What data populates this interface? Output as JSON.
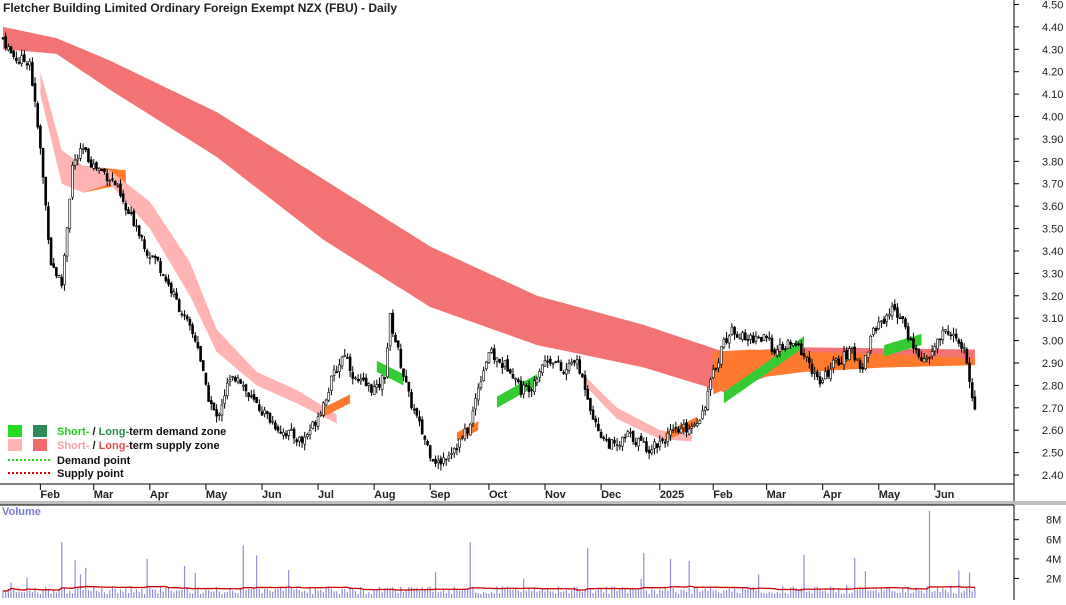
{
  "chart_data": {
    "type": "candlestick",
    "title": "Fletcher Building Limited Ordinary Foreign Exempt NZX (FBU) - Daily",
    "price_axis": {
      "ylim": [
        2.36,
        4.52
      ],
      "ticks": [
        "2.40",
        "2.50",
        "2.60",
        "2.70",
        "2.80",
        "2.90",
        "3.00",
        "3.10",
        "3.20",
        "3.30",
        "3.40",
        "3.50",
        "3.60",
        "3.70",
        "3.80",
        "3.90",
        "4.00",
        "4.10",
        "4.20",
        "4.30",
        "4.40",
        "4.50"
      ]
    },
    "x_axis": {
      "months": [
        "Feb",
        "Mar",
        "Apr",
        "May",
        "Jun",
        "Jul",
        "Aug",
        "Sep",
        "Oct",
        "Nov",
        "Dec",
        "2025",
        "Feb",
        "Mar",
        "Apr",
        "May",
        "Jun"
      ],
      "month_index": [
        14,
        34,
        55,
        76,
        97,
        118,
        139,
        160,
        182,
        203,
        224,
        246,
        266,
        286,
        307,
        328,
        349
      ]
    },
    "price_anchors": [
      [
        0,
        4.35
      ],
      [
        3,
        4.28
      ],
      [
        6,
        4.25
      ],
      [
        10,
        4.25
      ],
      [
        14,
        3.85
      ],
      [
        18,
        3.35
      ],
      [
        22,
        3.25
      ],
      [
        26,
        3.78
      ],
      [
        30,
        3.85
      ],
      [
        34,
        3.78
      ],
      [
        38,
        3.75
      ],
      [
        42,
        3.7
      ],
      [
        46,
        3.58
      ],
      [
        50,
        3.52
      ],
      [
        54,
        3.4
      ],
      [
        58,
        3.35
      ],
      [
        62,
        3.25
      ],
      [
        66,
        3.15
      ],
      [
        70,
        3.05
      ],
      [
        73,
        2.98
      ],
      [
        76,
        2.78
      ],
      [
        80,
        2.65
      ],
      [
        84,
        2.8
      ],
      [
        88,
        2.85
      ],
      [
        92,
        2.75
      ],
      [
        96,
        2.7
      ],
      [
        100,
        2.65
      ],
      [
        104,
        2.6
      ],
      [
        108,
        2.58
      ],
      [
        112,
        2.55
      ],
      [
        116,
        2.62
      ],
      [
        120,
        2.72
      ],
      [
        124,
        2.85
      ],
      [
        128,
        2.95
      ],
      [
        132,
        2.82
      ],
      [
        136,
        2.8
      ],
      [
        140,
        2.78
      ],
      [
        143,
        2.85
      ],
      [
        145,
        3.1
      ],
      [
        148,
        2.95
      ],
      [
        152,
        2.75
      ],
      [
        156,
        2.62
      ],
      [
        160,
        2.5
      ],
      [
        163,
        2.45
      ],
      [
        167,
        2.5
      ],
      [
        171,
        2.55
      ],
      [
        175,
        2.62
      ],
      [
        178,
        2.8
      ],
      [
        182,
        2.95
      ],
      [
        186,
        2.9
      ],
      [
        190,
        2.88
      ],
      [
        194,
        2.78
      ],
      [
        198,
        2.8
      ],
      [
        202,
        2.9
      ],
      [
        206,
        2.92
      ],
      [
        210,
        2.85
      ],
      [
        214,
        2.92
      ],
      [
        218,
        2.8
      ],
      [
        222,
        2.62
      ],
      [
        226,
        2.55
      ],
      [
        230,
        2.52
      ],
      [
        234,
        2.58
      ],
      [
        238,
        2.55
      ],
      [
        242,
        2.52
      ],
      [
        246,
        2.55
      ],
      [
        250,
        2.58
      ],
      [
        254,
        2.6
      ],
      [
        258,
        2.62
      ],
      [
        262,
        2.68
      ],
      [
        266,
        2.85
      ],
      [
        270,
        3.0
      ],
      [
        274,
        3.05
      ],
      [
        278,
        3.0
      ],
      [
        282,
        3.02
      ],
      [
        286,
        3.0
      ],
      [
        290,
        2.95
      ],
      [
        294,
        2.98
      ],
      [
        298,
        2.97
      ],
      [
        302,
        2.9
      ],
      [
        306,
        2.8
      ],
      [
        310,
        2.88
      ],
      [
        314,
        2.92
      ],
      [
        318,
        2.95
      ],
      [
        322,
        2.88
      ],
      [
        326,
        3.05
      ],
      [
        330,
        3.1
      ],
      [
        334,
        3.15
      ],
      [
        338,
        3.05
      ],
      [
        342,
        2.95
      ],
      [
        346,
        2.9
      ],
      [
        350,
        3.0
      ],
      [
        354,
        3.05
      ],
      [
        357,
        3.0
      ],
      [
        360,
        2.95
      ],
      [
        362,
        2.82
      ],
      [
        364,
        2.7
      ]
    ],
    "long_supply_zone": {
      "upper": [
        [
          0,
          4.4
        ],
        [
          20,
          4.35
        ],
        [
          40,
          4.25
        ],
        [
          80,
          4.02
        ],
        [
          120,
          3.72
        ],
        [
          160,
          3.42
        ],
        [
          200,
          3.2
        ],
        [
          240,
          3.07
        ],
        [
          270,
          2.95
        ],
        [
          300,
          2.97
        ],
        [
          364,
          2.96
        ]
      ],
      "lower": [
        [
          0,
          4.3
        ],
        [
          20,
          4.28
        ],
        [
          40,
          4.12
        ],
        [
          80,
          3.82
        ],
        [
          120,
          3.45
        ],
        [
          160,
          3.15
        ],
        [
          200,
          2.98
        ],
        [
          240,
          2.88
        ],
        [
          270,
          2.77
        ],
        [
          300,
          2.9
        ],
        [
          364,
          2.9
        ]
      ]
    },
    "short_supply_zone": {
      "upper": [
        [
          14,
          4.2
        ],
        [
          22,
          3.85
        ],
        [
          30,
          3.78
        ],
        [
          40,
          3.76
        ],
        [
          55,
          3.62
        ],
        [
          70,
          3.35
        ],
        [
          80,
          3.05
        ],
        [
          95,
          2.86
        ],
        [
          110,
          2.78
        ],
        [
          125,
          2.67
        ]
      ],
      "lower": [
        [
          14,
          4.1
        ],
        [
          22,
          3.7
        ],
        [
          30,
          3.66
        ],
        [
          40,
          3.7
        ],
        [
          55,
          3.5
        ],
        [
          70,
          3.2
        ],
        [
          80,
          2.95
        ],
        [
          95,
          2.8
        ],
        [
          110,
          2.72
        ],
        [
          125,
          2.63
        ]
      ]
    },
    "short_demand_zones": [
      {
        "color": "#33cc33",
        "points": [
          [
            140,
            2.86
          ],
          [
            150,
            2.8
          ]
        ]
      },
      {
        "color": "#33cc33",
        "points": [
          [
            185,
            2.7
          ],
          [
            200,
            2.8
          ]
        ]
      },
      {
        "color": "#33cc33",
        "points": [
          [
            270,
            2.72
          ],
          [
            300,
            2.97
          ]
        ]
      },
      {
        "color": "#33cc33",
        "points": [
          [
            330,
            2.93
          ],
          [
            344,
            2.98
          ]
        ]
      }
    ],
    "volume_axis": {
      "ylim": [
        0,
        9400000
      ],
      "ticks": [
        "2M",
        "4M",
        "6M",
        "8M"
      ]
    },
    "volume_label": "Volume",
    "legend": [
      {
        "swatches": [
          "#22dd22",
          "#2e8b57"
        ],
        "segments": [
          "Short-",
          " / ",
          "Long-",
          "term demand zone"
        ]
      },
      {
        "swatches": [
          "#ffb6c1",
          "#f15a5a"
        ],
        "segments": [
          "Short-",
          " / ",
          "Long-",
          "term supply zone"
        ]
      },
      {
        "line": "#22cc22",
        "text": "Demand point"
      },
      {
        "line": "#dd0000",
        "text": "Supply point"
      }
    ],
    "colors": {
      "long_supply": "#f26b6b",
      "short_supply": "#ffb3b3",
      "demand_short": "#22dd22",
      "demand_long": "#2e8b57",
      "orange_band": "#ff7a2e",
      "candle": "#000000",
      "volume_bar": "#8e8ed6",
      "volume_ma": "#cc0000"
    }
  }
}
